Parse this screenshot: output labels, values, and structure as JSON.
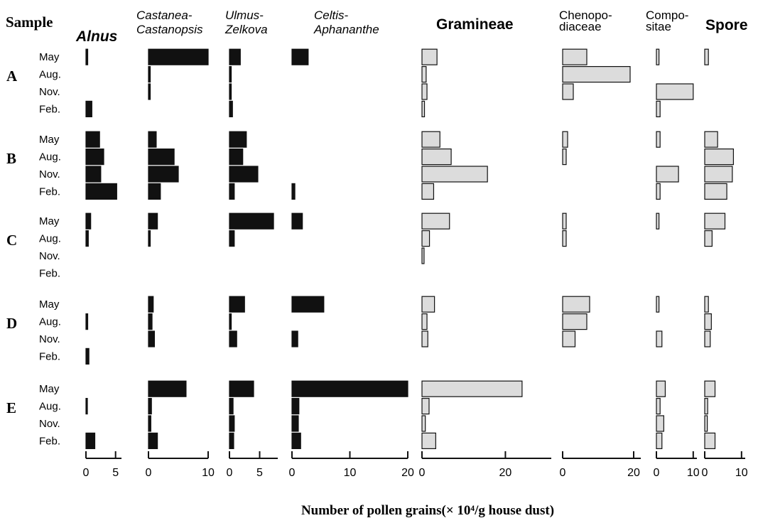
{
  "chart_data": {
    "type": "bar",
    "orientation": "horizontal",
    "row_header": "Sample",
    "xlabel": "Number of pollen grains(× 10⁴/g house dust)",
    "months": [
      "May",
      "Aug.",
      "Nov.",
      "Feb."
    ],
    "samples": [
      "A",
      "B",
      "C",
      "D",
      "E"
    ],
    "panels": [
      {
        "id": "alnus",
        "title_lines": [
          "Alnus"
        ],
        "fill": "#111111",
        "xlim": [
          0,
          6
        ],
        "ticks": [
          0,
          5
        ],
        "values": [
          [
            0.3,
            null,
            null,
            1.0
          ],
          [
            2.3,
            3.0,
            2.5,
            5.2
          ],
          [
            0.8,
            0.4,
            null,
            null
          ],
          [
            null,
            0.3,
            null,
            0.5
          ],
          [
            null,
            0.1,
            null,
            1.5
          ]
        ]
      },
      {
        "id": "castanea",
        "title_lines": [
          "Castanea-",
          "Castanopsis"
        ],
        "fill": "#111111",
        "xlim": [
          0,
          10
        ],
        "ticks": [
          0,
          10
        ],
        "values": [
          [
            10.0,
            0.3,
            0.3,
            null
          ],
          [
            1.3,
            4.3,
            5.0,
            2.0
          ],
          [
            1.5,
            0.3,
            null,
            null
          ],
          [
            0.8,
            0.6,
            1.0,
            null
          ],
          [
            6.3,
            0.5,
            0.4,
            1.5
          ]
        ]
      },
      {
        "id": "ulmus",
        "title_lines": [
          "Ulmus-",
          "Zelkova"
        ],
        "fill": "#111111",
        "xlim": [
          0,
          8
        ],
        "ticks": [
          0,
          5
        ],
        "values": [
          [
            1.8,
            0.3,
            0.3,
            0.5
          ],
          [
            2.8,
            2.2,
            4.7,
            0.8
          ],
          [
            7.3,
            0.8,
            null,
            null
          ],
          [
            2.5,
            0.3,
            1.2,
            null
          ],
          [
            4.0,
            0.6,
            0.8,
            0.7
          ]
        ]
      },
      {
        "id": "celtis",
        "title_lines": [
          "Celtis-",
          "Aphananthe"
        ],
        "fill": "#111111",
        "xlim": [
          0,
          20
        ],
        "ticks": [
          0,
          10,
          20
        ],
        "values": [
          [
            2.8,
            null,
            null,
            null
          ],
          [
            null,
            null,
            null,
            0.5
          ],
          [
            1.8,
            null,
            null,
            null
          ],
          [
            5.5,
            null,
            1.0,
            null
          ],
          [
            20.0,
            1.2,
            1.1,
            1.5
          ]
        ]
      },
      {
        "id": "gramineae",
        "title_lines": [
          "Gramineae"
        ],
        "fill": "#dcdcdc",
        "xlim": [
          0,
          31
        ],
        "ticks": [
          0,
          20
        ],
        "values": [
          [
            3.6,
            1.0,
            1.2,
            0.6
          ],
          [
            4.3,
            7.0,
            15.7,
            2.8
          ],
          [
            6.6,
            1.8,
            0.5,
            null
          ],
          [
            3.0,
            1.2,
            1.4,
            null
          ],
          [
            24.0,
            1.7,
            0.8,
            3.3
          ]
        ]
      },
      {
        "id": "chenopodiaceae",
        "title_lines": [
          "Chenopo-",
          "diaceae"
        ],
        "fill": "#dcdcdc",
        "xlim": [
          0,
          22
        ],
        "ticks": [
          0,
          20
        ],
        "values": [
          [
            6.8,
            19.0,
            3.0,
            null
          ],
          [
            1.4,
            1.0,
            null,
            null
          ],
          [
            1.0,
            1.0,
            null,
            null
          ],
          [
            7.6,
            6.8,
            3.5,
            null
          ],
          [
            null,
            null,
            null,
            null
          ]
        ]
      },
      {
        "id": "compositae",
        "title_lines": [
          "Compo-",
          "sitae"
        ],
        "fill": "#dcdcdc",
        "xlim": [
          0,
          11
        ],
        "ticks": [
          0,
          10
        ],
        "values": [
          [
            0.7,
            null,
            10.0,
            1.0
          ],
          [
            1.0,
            null,
            6.0,
            1.0
          ],
          [
            0.7,
            null,
            null,
            null
          ],
          [
            0.7,
            null,
            1.5,
            null
          ],
          [
            2.4,
            1.0,
            2.0,
            1.5
          ]
        ]
      },
      {
        "id": "spore",
        "title_lines": [
          "Spore"
        ],
        "fill": "#dcdcdc",
        "xlim": [
          0,
          11
        ],
        "ticks": [
          0,
          10
        ],
        "values": [
          [
            1.0,
            null,
            null,
            null
          ],
          [
            3.5,
            7.8,
            7.5,
            6.0
          ],
          [
            5.5,
            2.0,
            null,
            null
          ],
          [
            1.0,
            1.8,
            1.5,
            null
          ],
          [
            2.8,
            0.8,
            0.7,
            2.8
          ]
        ]
      }
    ]
  }
}
